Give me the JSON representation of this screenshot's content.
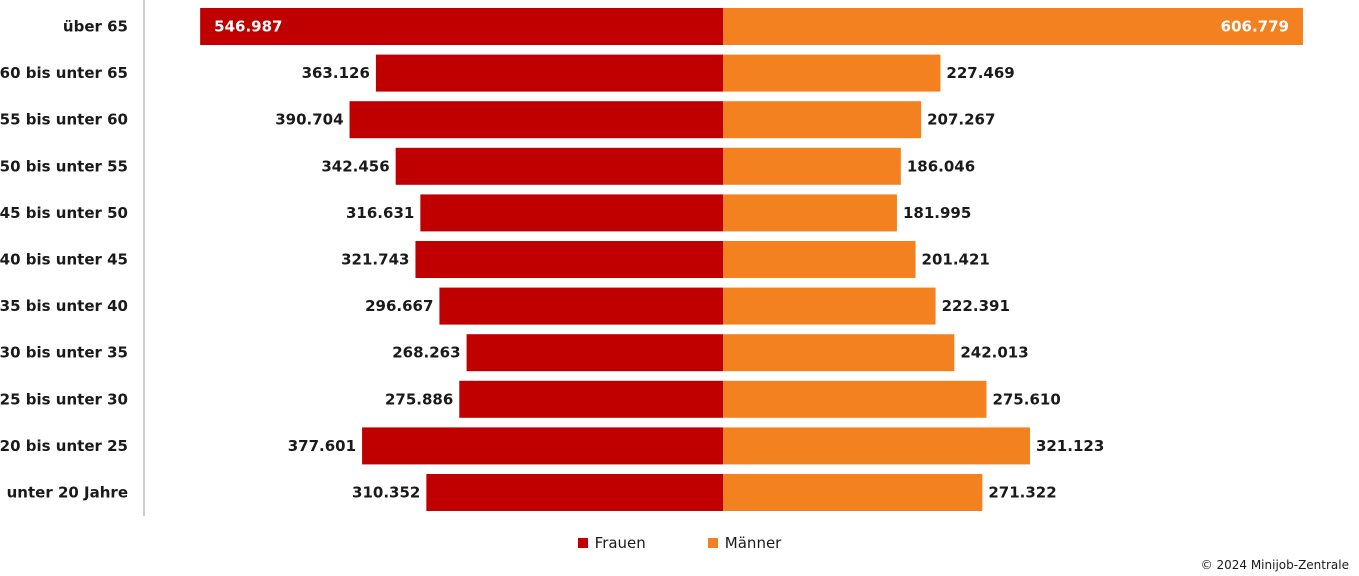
{
  "chart_data": {
    "type": "bar",
    "orientation": "horizontal-diverging",
    "categories": [
      "über 65",
      "60 bis unter 65",
      "55 bis unter 60",
      "50 bis unter 55",
      "45 bis unter 50",
      "40 bis unter 45",
      "35 bis unter 40",
      "30 bis unter 35",
      "25 bis unter 30",
      "20 bis unter 25",
      "unter 20 Jahre"
    ],
    "series": [
      {
        "name": "Frauen",
        "color": "#c00000",
        "side": "left",
        "values": [
          546987,
          363126,
          390704,
          342456,
          316631,
          321743,
          296667,
          268263,
          275886,
          377601,
          310352
        ],
        "labels": [
          "546.987",
          "363.126",
          "390.704",
          "342.456",
          "316.631",
          "321.743",
          "296.667",
          "268.263",
          "275.886",
          "377.601",
          "310.352"
        ]
      },
      {
        "name": "Männer",
        "color": "#f48120",
        "side": "right",
        "values": [
          606779,
          227469,
          207267,
          186046,
          181995,
          201421,
          222391,
          242013,
          275610,
          321123,
          271322
        ],
        "labels": [
          "606.779",
          "227.469",
          "207.267",
          "186.046",
          "181.995",
          "201.421",
          "222.391",
          "242.013",
          "275.610",
          "321.123",
          "271.322"
        ]
      }
    ],
    "xlim": [
      0,
      606779
    ],
    "grid": false,
    "legend": {
      "placement": "bottom-center"
    }
  },
  "footer": {
    "copyright": "© 2024 Minijob-Zentrale"
  }
}
